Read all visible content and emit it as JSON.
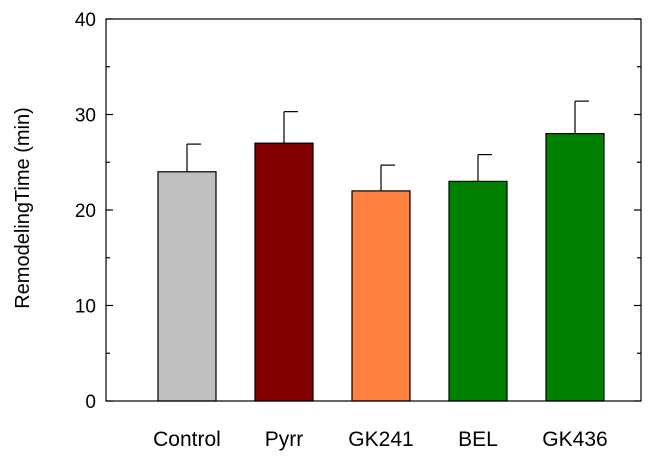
{
  "chart_data": {
    "type": "bar",
    "categories": [
      "Control",
      "Pyrr",
      "GK241",
      "BEL",
      "GK436"
    ],
    "values": [
      24,
      27,
      22,
      23,
      28
    ],
    "errors": [
      2.9,
      3.3,
      2.7,
      2.8,
      3.4
    ],
    "colors": [
      "#c0c0c0",
      "#800000",
      "#ff8040",
      "#008000",
      "#008000"
    ],
    "xlabel": "",
    "ylabel": "RemodelingTime (min)",
    "ylim": [
      0,
      40
    ],
    "yticks": [
      0,
      10,
      20,
      30,
      40
    ],
    "grid": false,
    "legend": "none"
  }
}
